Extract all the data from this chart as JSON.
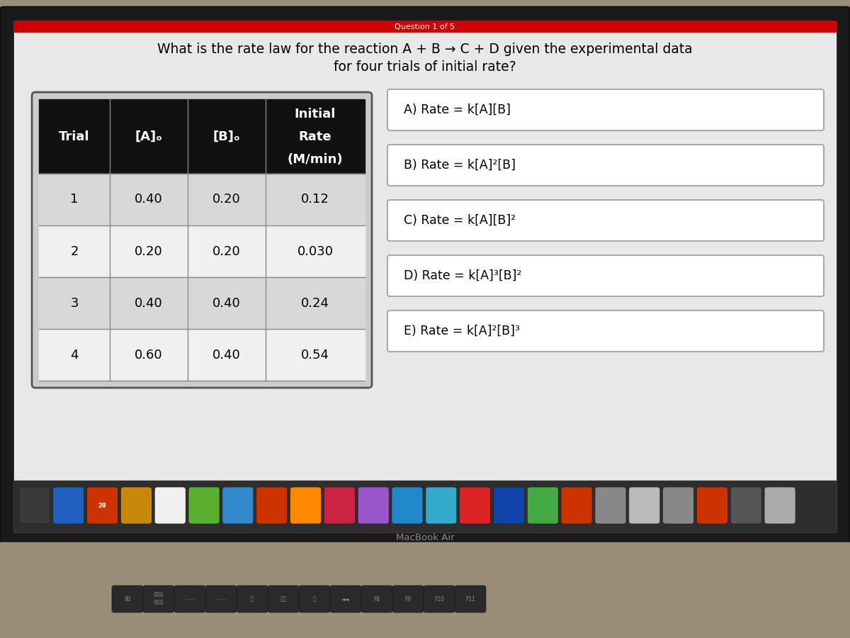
{
  "title_line1": "What is the rate law for the reaction A + B → C + D given the experimental data",
  "title_line2": "for four trials of initial rate?",
  "question_label": "Question 1 of 5",
  "table": {
    "col_headers": [
      "Trial",
      "[A]ₒ",
      "[B]ₒ"
    ],
    "col4_header": [
      "Initial",
      "Rate",
      "(M/min)"
    ],
    "rows": [
      [
        "1",
        "0.40",
        "0.20",
        "0.12"
      ],
      [
        "2",
        "0.20",
        "0.20",
        "0.030"
      ],
      [
        "3",
        "0.40",
        "0.40",
        "0.24"
      ],
      [
        "4",
        "0.60",
        "0.40",
        "0.54"
      ]
    ],
    "header_bg": "#111111",
    "header_fg": "#ffffff",
    "row_colors": [
      "#d8d8d8",
      "#f0f0f0",
      "#d8d8d8",
      "#f0f0f0"
    ],
    "border_color": "#888888",
    "outer_border_color": "#555555"
  },
  "options": [
    "A) Rate = k[A][B]",
    "B) Rate = k[A]²[B]",
    "C) Rate = k[A][B]²",
    "D) Rate = k[A]³[B]²",
    "E) Rate = k[A]²[B]³"
  ],
  "option_box_facecolor": "#ffffff",
  "option_border_color": "#aaaaaa",
  "bg_color": "#e8e8e8",
  "screen_bg": "#e8e8e8",
  "top_bar_color": "#cc0000",
  "dock_bar_color": "#2a2a2a",
  "bezel_color": "#1a1a1a",
  "keyboard_color": "#888060",
  "macbook_text_color": "#888888",
  "font_size_title": 13.5,
  "font_size_table_header": 13,
  "font_size_table_data": 13,
  "font_size_options": 12.5
}
